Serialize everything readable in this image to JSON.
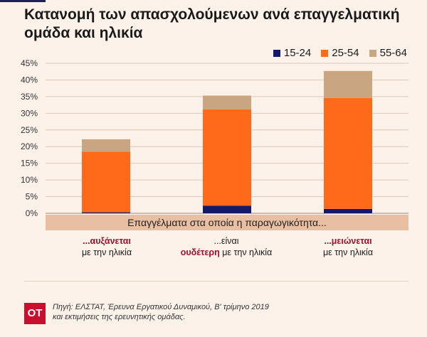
{
  "header": {
    "title_line1": "Κατανομή των απασχολούμενων ανά επαγγελματική",
    "title_line2": "ομάδα και ηλικία"
  },
  "colors": {
    "s1524": "#141a6b",
    "s2554": "#ff6a1a",
    "s5564": "#c9a581",
    "grid": "#d8c8bc"
  },
  "chart_data": {
    "type": "bar",
    "stacked": true,
    "categories": [
      "",
      "",
      ""
    ],
    "series": [
      {
        "name": "15-24",
        "values": [
          0.3,
          2.3,
          1.3
        ]
      },
      {
        "name": "25-54",
        "values": [
          18.2,
          28.9,
          33.3
        ]
      },
      {
        "name": "55-64",
        "values": [
          3.7,
          4.1,
          8.1
        ]
      }
    ],
    "ylim": [
      0,
      45
    ],
    "yticks": [
      "0%",
      "5%",
      "10%",
      "15%",
      "20%",
      "25%",
      "30%",
      "35%",
      "40%",
      "45%"
    ],
    "legend": "top-right",
    "grid": true
  },
  "band_label": "Επαγγέλματα στα οποία η παραγωγικότητα...",
  "notes": [
    {
      "line1": "...αυξάνεται",
      "line2": "με την ηλικία"
    },
    {
      "line1": "...είναι",
      "line2_hl": "ουδέτερη",
      "line2_rest": " με την ηλικία"
    },
    {
      "line1": "...μειώνεται",
      "line2": "με την ηλικία"
    }
  ],
  "footer": {
    "logo": "OT",
    "source_line1": "Πηγή: ΕΛΣΤΑΤ, Έρευνα Εργατικού Δυναμικού, Β' τρίμηνο 2019",
    "source_line2": "και εκτιμήσεις της ερευνητικής ομάδας."
  }
}
